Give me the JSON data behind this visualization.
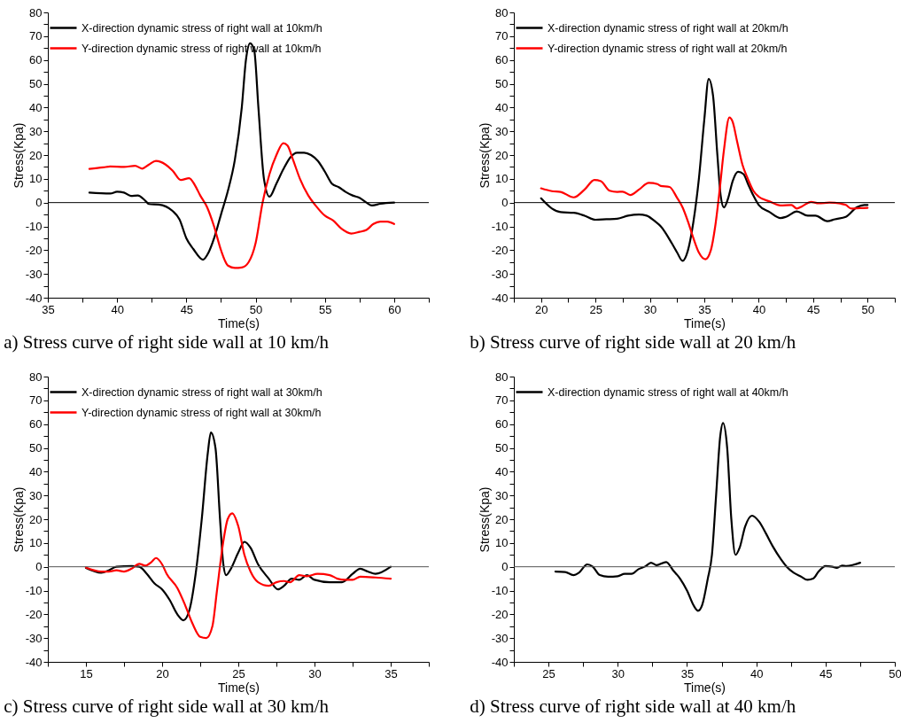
{
  "chart_data": [
    {
      "type": "line",
      "xlabel": "Time(s)",
      "ylabel": "Stress(Kpa)",
      "annotations": [
        "a) Stress curve of right side wall at 10 km/h"
      ],
      "legend": "top left",
      "grid": false,
      "line_style": "solid",
      "xlim": [
        35,
        62.5
      ],
      "xticks": [
        35,
        {
          "value": 37.5,
          "label": null
        },
        40,
        {
          "value": 42.5,
          "label": null
        },
        45,
        {
          "value": 47.5,
          "label": null
        },
        50,
        {
          "value": 52.5,
          "label": null
        },
        55,
        {
          "value": 57.5,
          "label": null
        },
        60,
        {
          "value": 62.5,
          "label": null
        }
      ],
      "ylim": [
        -40,
        80
      ],
      "yticks": [
        -40,
        {
          "value": -35,
          "label": null
        },
        -30,
        {
          "value": -25,
          "label": null
        },
        -20,
        {
          "value": -15,
          "label": null
        },
        -10,
        {
          "value": -5,
          "label": null
        },
        0,
        {
          "value": 5,
          "label": null
        },
        10,
        {
          "value": 15,
          "label": null
        },
        20,
        {
          "value": 25,
          "label": null
        },
        30,
        {
          "value": 35,
          "label": null
        },
        40,
        {
          "value": 45,
          "label": null
        },
        50,
        {
          "value": 55,
          "label": null
        },
        60,
        {
          "value": 65,
          "label": null
        },
        70,
        {
          "value": 75,
          "label": null
        },
        80
      ],
      "ref_lines": [
        {
          "axis": "y",
          "value": 0,
          "color": "#000000"
        }
      ],
      "series": [
        {
          "name": "X-direction dynamic stress of right wall at 10km/h",
          "color": "#000000",
          "x": [
            38,
            39.5,
            40,
            40.5,
            41,
            41.5,
            42,
            42.3,
            43,
            44,
            44.5,
            45,
            45.5,
            46.2,
            46.6,
            47,
            47.5,
            48,
            48.5,
            49,
            49.3,
            49.6,
            49.9,
            50.2,
            50.6,
            51,
            51.5,
            52,
            52.5,
            53,
            53.5,
            54,
            54.5,
            55,
            55.5,
            56,
            56.5,
            57,
            57.5,
            58,
            58.4,
            59,
            60
          ],
          "values": [
            4.2,
            3.8,
            4.6,
            4.2,
            2.8,
            3,
            1,
            -0.6,
            -0.8,
            -3.5,
            -7,
            -15,
            -19.5,
            -24,
            -21,
            -15,
            -5,
            5,
            18,
            40,
            60,
            67,
            64,
            40,
            10,
            2.5,
            8,
            14,
            19,
            21,
            21,
            20,
            17.5,
            13,
            8,
            6.5,
            4.5,
            3,
            2,
            0,
            -1.2,
            -0.5,
            0
          ]
        },
        {
          "name": "Y-direction dynamic stress of right wall at 10km/h",
          "color": "#ff0000",
          "x": [
            38,
            39,
            39.5,
            40.5,
            41.3,
            41.8,
            42.3,
            42.8,
            43.5,
            44,
            44.6,
            45.2,
            45.6,
            46,
            46.5,
            47,
            47.5,
            48,
            48.5,
            49,
            49.5,
            50,
            50.5,
            51,
            51.5,
            52,
            52.3,
            52.7,
            53.2,
            53.8,
            54.3,
            55,
            55.6,
            56.2,
            56.9,
            57.5,
            58,
            58.5,
            59,
            59.5,
            60
          ],
          "values": [
            14.2,
            14.8,
            15.2,
            15,
            15.5,
            14.3,
            16,
            17.5,
            16,
            13.5,
            9.5,
            10.3,
            7.5,
            3,
            -2,
            -10,
            -20,
            -26.5,
            -27.5,
            -27.3,
            -25,
            -17,
            0,
            12,
            20,
            25,
            24,
            18,
            10,
            3,
            -1,
            -5.5,
            -7.5,
            -11,
            -13,
            -12.3,
            -11.5,
            -9,
            -8,
            -8,
            -9
          ]
        }
      ]
    },
    {
      "type": "line",
      "xlabel": "Time(s)",
      "ylabel": "Stress(Kpa)",
      "annotations": [
        "b) Stress curve of right side wall at 20 km/h"
      ],
      "legend": "top left",
      "grid": false,
      "line_style": "solid",
      "xlim": [
        17.5,
        52.5
      ],
      "xticks": [
        {
          "value": 17.5,
          "label": null
        },
        20,
        {
          "value": 22.5,
          "label": null
        },
        25,
        {
          "value": 27.5,
          "label": null
        },
        30,
        {
          "value": 32.5,
          "label": null
        },
        35,
        {
          "value": 37.5,
          "label": null
        },
        40,
        {
          "value": 42.5,
          "label": null
        },
        45,
        {
          "value": 47.5,
          "label": null
        },
        50,
        {
          "value": 52.5,
          "label": null
        }
      ],
      "ylim": [
        -40,
        80
      ],
      "yticks": [
        -40,
        {
          "value": -35,
          "label": null
        },
        -30,
        {
          "value": -25,
          "label": null
        },
        -20,
        {
          "value": -15,
          "label": null
        },
        -10,
        {
          "value": -5,
          "label": null
        },
        0,
        {
          "value": 5,
          "label": null
        },
        10,
        {
          "value": 15,
          "label": null
        },
        20,
        {
          "value": 25,
          "label": null
        },
        30,
        {
          "value": 35,
          "label": null
        },
        40,
        {
          "value": 45,
          "label": null
        },
        50,
        {
          "value": 55,
          "label": null
        },
        60,
        {
          "value": 65,
          "label": null
        },
        70,
        {
          "value": 75,
          "label": null
        },
        80
      ],
      "ref_lines": [
        {
          "axis": "y",
          "value": 0,
          "color": "#000000"
        }
      ],
      "series": [
        {
          "name": "X-direction dynamic stress of right  wall at 20km/h",
          "color": "#000000",
          "x": [
            20,
            21,
            21.8,
            23,
            24,
            25,
            26,
            27,
            28,
            29,
            29.7,
            30.5,
            31,
            32,
            32.5,
            33,
            33.5,
            34,
            34.5,
            35,
            35.4,
            35.8,
            36.2,
            36.5,
            36.8,
            37.2,
            37.6,
            38.1,
            38.6,
            39,
            39.5,
            40,
            41,
            42,
            42.5,
            43.5,
            44.5,
            45.2,
            46.3,
            47,
            48,
            49,
            49.7,
            50
          ],
          "values": [
            1.8,
            -2.5,
            -4,
            -4.3,
            -5.5,
            -7.2,
            -7,
            -6.8,
            -5.5,
            -5,
            -5.5,
            -8,
            -10,
            -17,
            -21,
            -24.5,
            -20,
            -8,
            10,
            35,
            52,
            45,
            20,
            3,
            -2,
            2,
            9,
            13,
            12,
            8,
            3,
            -1,
            -4,
            -6.5,
            -6,
            -3.7,
            -5.5,
            -5.5,
            -7.8,
            -7,
            -6,
            -2,
            -1,
            -1
          ]
        },
        {
          "name": "Y-direction dynamic stress of right  wall at 20km/h",
          "color": "#ff0000",
          "x": [
            20,
            21,
            21.8,
            23,
            24,
            24.9,
            25.5,
            26.3,
            27,
            27.5,
            28.2,
            29,
            29.9,
            30.7,
            31,
            31.8,
            32.5,
            33,
            33.5,
            34,
            34.5,
            35.1,
            35.6,
            36,
            36.4,
            36.8,
            37.3,
            37.6,
            38,
            38.5,
            39,
            39.5,
            40,
            41,
            42,
            43,
            43.5,
            44,
            44.8,
            45.5,
            46.5,
            47.5,
            48,
            48.5,
            49.3,
            50
          ],
          "values": [
            6,
            4.8,
            4.5,
            2.2,
            5.5,
            9.5,
            9,
            5,
            4.5,
            4.6,
            3.2,
            5.5,
            8.3,
            7.8,
            7,
            6.6,
            2,
            -2,
            -8,
            -15,
            -21,
            -23.8,
            -20,
            -10,
            5,
            22,
            35.8,
            34,
            26,
            16,
            10,
            5,
            2.5,
            0.5,
            -1.2,
            -1,
            -2.5,
            -1.5,
            0.3,
            -0.3,
            0,
            -0.4,
            -1,
            -2.5,
            -2.3,
            -2.2
          ]
        }
      ]
    },
    {
      "type": "line",
      "xlabel": "Time(s)",
      "ylabel": "Stress(Kpa)",
      "annotations": [
        "c) Stress curve of right side wall at 30 km/h"
      ],
      "legend": "top left",
      "grid": false,
      "line_style": "solid",
      "xlim": [
        12.5,
        37.5
      ],
      "xticks": [
        {
          "value": 12.5,
          "label": null
        },
        15,
        {
          "value": 17.5,
          "label": null
        },
        20,
        {
          "value": 22.5,
          "label": null
        },
        25,
        {
          "value": 27.5,
          "label": null
        },
        30,
        {
          "value": 32.5,
          "label": null
        },
        35,
        {
          "value": 37.5,
          "label": null
        }
      ],
      "ylim": [
        -40,
        80
      ],
      "yticks": [
        -40,
        {
          "value": -35,
          "label": null
        },
        -30,
        {
          "value": -25,
          "label": null
        },
        -20,
        {
          "value": -15,
          "label": null
        },
        -10,
        {
          "value": -5,
          "label": null
        },
        0,
        {
          "value": 5,
          "label": null
        },
        10,
        {
          "value": 15,
          "label": null
        },
        20,
        {
          "value": 25,
          "label": null
        },
        30,
        {
          "value": 35,
          "label": null
        },
        40,
        {
          "value": 45,
          "label": null
        },
        50,
        {
          "value": 55,
          "label": null
        },
        60,
        {
          "value": 65,
          "label": null
        },
        70,
        {
          "value": 75,
          "label": null
        },
        80
      ],
      "ref_lines": [
        {
          "axis": "y",
          "value": 0,
          "color": "#555555"
        }
      ],
      "series": [
        {
          "name": "X-direction dynamic stress of right wall at 30km/h",
          "color": "#000000",
          "x": [
            15,
            16,
            16.5,
            17,
            18,
            18.5,
            19,
            19.5,
            20,
            20.5,
            21,
            21.4,
            21.8,
            22.2,
            22.6,
            23,
            23.2,
            23.5,
            23.8,
            24,
            24.2,
            24.5,
            25,
            25.4,
            25.8,
            26.3,
            27,
            27.6,
            28,
            28.5,
            29,
            29.5,
            30,
            31,
            31.8,
            32.5,
            33,
            33.5,
            34,
            35
          ],
          "values": [
            -0.5,
            -2.5,
            -1.5,
            0,
            0.3,
            0,
            -3,
            -7,
            -9.5,
            -14,
            -20,
            -22.5,
            -18,
            -3,
            20,
            48,
            56.5,
            50,
            20,
            2,
            -3.5,
            -1,
            6,
            10.5,
            8,
            1,
            -5,
            -9.5,
            -8,
            -5,
            -5.5,
            -3.5,
            -5.5,
            -6.5,
            -6.5,
            -3,
            -0.8,
            -2,
            -3,
            0
          ]
        },
        {
          "name": "Y-direction dynamic stress of right wall at 30km/h",
          "color": "#ff0000",
          "x": [
            15,
            16,
            16.5,
            17,
            17.5,
            18,
            18.5,
            18.9,
            19.3,
            19.6,
            20,
            20.3,
            21,
            21.5,
            22,
            22.5,
            22.9,
            23.3,
            23.6,
            24,
            24.3,
            24.6,
            25,
            25.4,
            25.8,
            26.3,
            27,
            27.5,
            28,
            28.4,
            29,
            29.5,
            30.2,
            31,
            31.5,
            32,
            32.5,
            33,
            34,
            35
          ],
          "values": [
            -0.3,
            -2,
            -2,
            -1.5,
            -2,
            -0.8,
            1.2,
            0.5,
            2,
            3.7,
            1,
            -3,
            -9,
            -16,
            -24,
            -29.5,
            -30,
            -25,
            -10,
            10,
            20,
            22.5,
            17,
            5,
            -2,
            -6.5,
            -8,
            -6.5,
            -6,
            -6.5,
            -3.5,
            -4,
            -3,
            -3.5,
            -5,
            -5.5,
            -5.5,
            -4.2,
            -4.5,
            -5
          ]
        }
      ]
    },
    {
      "type": "line",
      "xlabel": "Time(s)",
      "ylabel": "Stress(Kpa)",
      "annotations": [
        "d) Stress curve of right side wall at 40 km/h"
      ],
      "legend": "top left",
      "grid": false,
      "line_style": "solid",
      "xlim": [
        22.5,
        50
      ],
      "xticks": [
        {
          "value": 22.5,
          "label": null
        },
        25,
        {
          "value": 27.5,
          "label": null
        },
        30,
        {
          "value": 32.5,
          "label": null
        },
        35,
        {
          "value": 37.5,
          "label": null
        },
        40,
        {
          "value": 42.5,
          "label": null
        },
        45,
        {
          "value": 47.5,
          "label": null
        },
        50
      ],
      "ylim": [
        -40,
        80
      ],
      "yticks": [
        -40,
        {
          "value": -35,
          "label": null
        },
        -30,
        {
          "value": -25,
          "label": null
        },
        -20,
        {
          "value": -15,
          "label": null
        },
        -10,
        {
          "value": -5,
          "label": null
        },
        0,
        {
          "value": 5,
          "label": null
        },
        10,
        {
          "value": 15,
          "label": null
        },
        20,
        {
          "value": 25,
          "label": null
        },
        30,
        {
          "value": 35,
          "label": null
        },
        40,
        {
          "value": 45,
          "label": null
        },
        50,
        {
          "value": 55,
          "label": null
        },
        60,
        {
          "value": 65,
          "label": null
        },
        70,
        {
          "value": 75,
          "label": null
        },
        80
      ],
      "ref_lines": [
        {
          "axis": "y",
          "value": 0,
          "color": "#555555"
        }
      ],
      "series": [
        {
          "name": "X-direction dynamic stress of right wall at 40km/h",
          "color": "#000000",
          "x": [
            25.5,
            26.2,
            26.8,
            27.2,
            27.8,
            28.2,
            28.7,
            29.3,
            30,
            30.5,
            31,
            31.5,
            32,
            32.4,
            32.8,
            33.5,
            34,
            34.5,
            35,
            35.5,
            35.8,
            36.1,
            36.5,
            36.8,
            37.1,
            37.4,
            37.6,
            37.9,
            38.2,
            38.5,
            38.8,
            39.2,
            39.7,
            40.2,
            40.7,
            41.2,
            41.8,
            42.2,
            42.7,
            43.2,
            43.7,
            44.1,
            44.5,
            45,
            45.5,
            45.8,
            46.2,
            46.5,
            47,
            47.5
          ],
          "values": [
            -2,
            -2.2,
            -3.5,
            -2.5,
            1,
            0,
            -3.5,
            -4.2,
            -4,
            -3,
            -3,
            -1,
            0.2,
            1.7,
            0.7,
            2,
            -1.5,
            -5,
            -10,
            -16.5,
            -18.5,
            -16,
            -5,
            5,
            30,
            55,
            60.5,
            50,
            20,
            5,
            8,
            17,
            21.5,
            19,
            14,
            8.5,
            3,
            0,
            -2.5,
            -4,
            -5.5,
            -5,
            -2,
            0.3,
            0,
            -0.5,
            0.5,
            0.3,
            0.8,
            1.7
          ]
        }
      ]
    }
  ]
}
